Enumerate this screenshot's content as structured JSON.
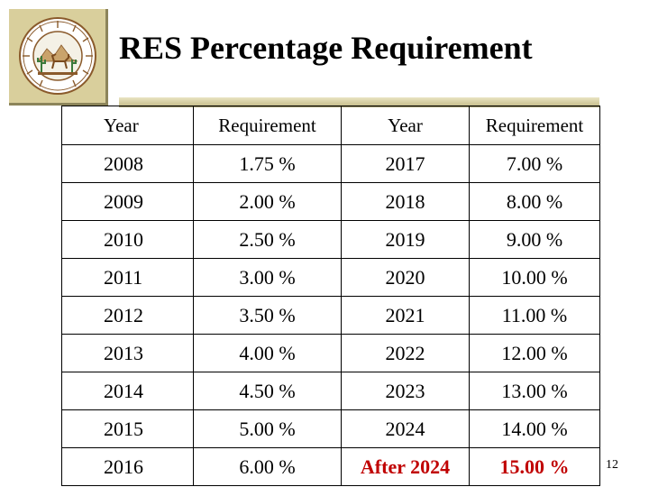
{
  "slide": {
    "title": "RES Percentage Requirement",
    "page_number": "12",
    "seal": {
      "icon": "arizona-corporation-commission-seal-icon",
      "text": "SEAL OF THE ARIZONA CORPORATION COMMISSION 1912",
      "color": "#d9cf9c"
    }
  },
  "table": {
    "headers": [
      "Year",
      "Requirement",
      "Year",
      "Requirement"
    ],
    "rows": [
      [
        "2008",
        "1.75 %",
        "2017",
        "7.00 %"
      ],
      [
        "2009",
        "2.00 %",
        "2018",
        "8.00 %"
      ],
      [
        "2010",
        "2.50 %",
        "2019",
        "9.00 %"
      ],
      [
        "2011",
        "3.00 %",
        "2020",
        "10.00 %"
      ],
      [
        "2012",
        "3.50 %",
        "2021",
        "11.00 %"
      ],
      [
        "2013",
        "4.00 %",
        "2022",
        "12.00 %"
      ],
      [
        "2014",
        "4.50 %",
        "2023",
        "13.00 %"
      ],
      [
        "2015",
        "5.00 %",
        "2024",
        "14.00 %"
      ],
      [
        "2016",
        "6.00 %",
        "After 2024",
        "15.00 %"
      ]
    ],
    "highlight_color": "#c00000"
  }
}
